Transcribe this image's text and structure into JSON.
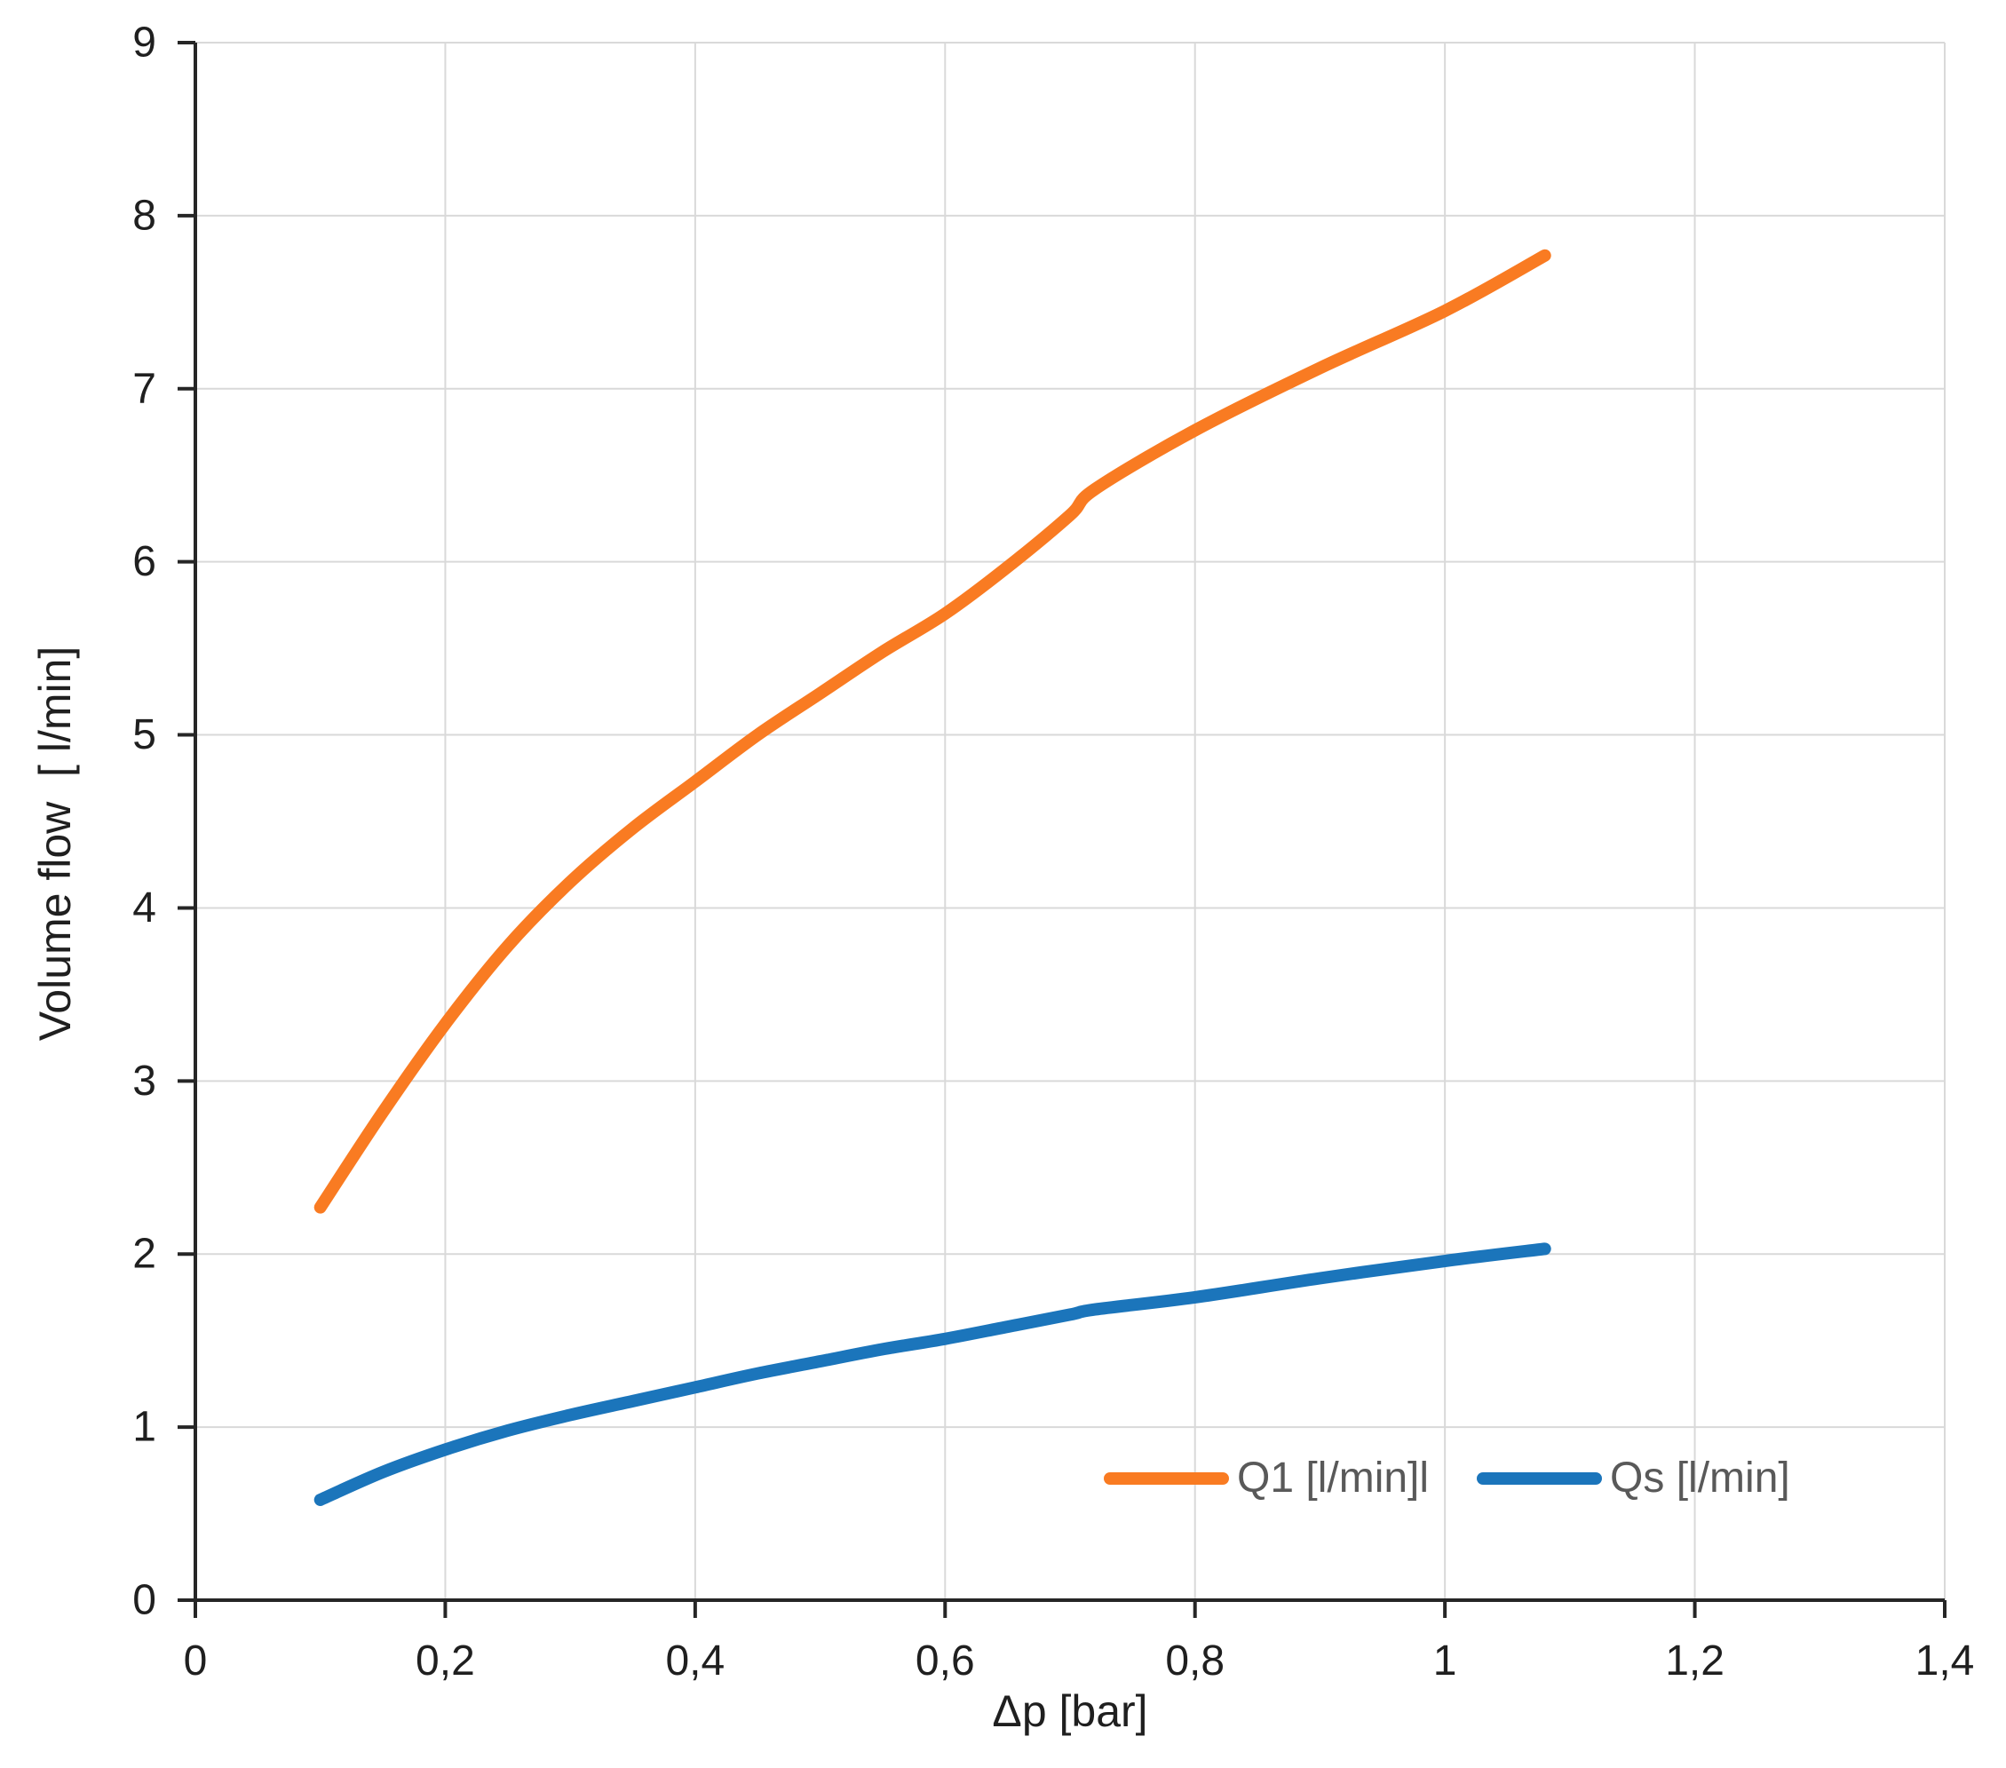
{
  "chart_data": {
    "type": "line",
    "title": "",
    "xlabel": "Δp [bar]",
    "ylabel": "Volume flow  [ l/min]",
    "xlim": [
      0,
      1.4
    ],
    "ylim": [
      0,
      9
    ],
    "grid": true,
    "background": "#FFFFFF",
    "grid_color": "#D9D9D9",
    "axis_color": "#262626",
    "tick_text_color": "#1f1f1f",
    "legend_text_color": "#595959",
    "legend_position": "inside-bottom-right",
    "x_ticks": [
      {
        "value": 0,
        "label": "0"
      },
      {
        "value": 0.2,
        "label": "0,2"
      },
      {
        "value": 0.4,
        "label": "0,4"
      },
      {
        "value": 0.6,
        "label": "0,6"
      },
      {
        "value": 0.8,
        "label": "0,8"
      },
      {
        "value": 1,
        "label": "1"
      },
      {
        "value": 1.2,
        "label": "1,2"
      },
      {
        "value": 1.4,
        "label": "1,4"
      }
    ],
    "y_ticks": [
      {
        "value": 0,
        "label": "0"
      },
      {
        "value": 1,
        "label": "1"
      },
      {
        "value": 2,
        "label": "2"
      },
      {
        "value": 3,
        "label": "3"
      },
      {
        "value": 4,
        "label": "4"
      },
      {
        "value": 5,
        "label": "5"
      },
      {
        "value": 6,
        "label": "6"
      },
      {
        "value": 7,
        "label": "7"
      },
      {
        "value": 8,
        "label": "8"
      },
      {
        "value": 9,
        "label": "9"
      }
    ],
    "series": [
      {
        "name": "Q1 [l/min]l",
        "color": "#F97B22",
        "x": [
          0.1,
          0.15,
          0.2,
          0.25,
          0.3,
          0.35,
          0.4,
          0.45,
          0.5,
          0.55,
          0.6,
          0.65,
          0.7,
          0.72,
          0.8,
          0.9,
          1.0,
          1.08
        ],
        "y": [
          2.27,
          2.82,
          3.33,
          3.78,
          4.15,
          4.46,
          4.73,
          5.0,
          5.24,
          5.48,
          5.7,
          5.97,
          6.27,
          6.42,
          6.76,
          7.12,
          7.45,
          7.77
        ]
      },
      {
        "name": "Qs [l/min]",
        "color": "#1B75BB",
        "x": [
          0.1,
          0.15,
          0.2,
          0.25,
          0.3,
          0.35,
          0.4,
          0.45,
          0.5,
          0.55,
          0.6,
          0.65,
          0.7,
          0.72,
          0.8,
          0.9,
          1.0,
          1.08
        ],
        "y": [
          0.58,
          0.74,
          0.87,
          0.98,
          1.07,
          1.15,
          1.23,
          1.31,
          1.38,
          1.45,
          1.51,
          1.58,
          1.65,
          1.68,
          1.75,
          1.86,
          1.96,
          2.03
        ]
      }
    ]
  }
}
